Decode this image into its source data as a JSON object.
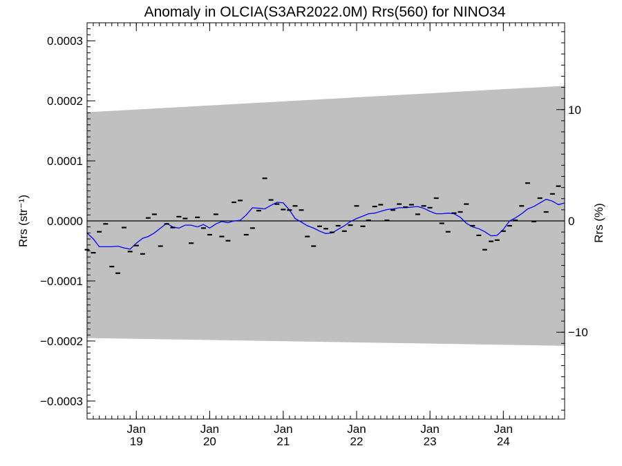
{
  "chart_data": {
    "type": "scatter",
    "title": "Anomaly in OLCIA(S3AR2022.0M) Rrs(560) for NINO34",
    "ylabel_left": "Rrs (str⁻¹)",
    "ylabel_right": "Rrs (%)",
    "ylim": [
      -0.00033,
      0.00033
    ],
    "ylim_right": [
      -17.8,
      17.8
    ],
    "xlim": [
      "2018-05-01",
      "2024-11-01"
    ],
    "y_ticks": [
      {
        "value": 0.0003,
        "label": "0.0003"
      },
      {
        "value": 0.0002,
        "label": "0.0002"
      },
      {
        "value": 0.0001,
        "label": "0.0001"
      },
      {
        "value": 0.0,
        "label": "0.0000"
      },
      {
        "value": -0.0001,
        "label": "−0.0001"
      },
      {
        "value": -0.0002,
        "label": "−0.0002"
      },
      {
        "value": -0.0003,
        "label": "−0.0003"
      }
    ],
    "y_ticks_right": [
      {
        "value": 10,
        "label": "10"
      },
      {
        "value": 0,
        "label": "0"
      },
      {
        "value": -10,
        "label": "−10"
      }
    ],
    "x_ticks": [
      {
        "date": "2019-01-01",
        "month": "Jan",
        "year": "19"
      },
      {
        "date": "2020-01-01",
        "month": "Jan",
        "year": "20"
      },
      {
        "date": "2021-01-01",
        "month": "Jan",
        "year": "21"
      },
      {
        "date": "2022-01-01",
        "month": "Jan",
        "year": "22"
      },
      {
        "date": "2023-01-01",
        "month": "Jan",
        "year": "23"
      },
      {
        "date": "2024-01-01",
        "month": "Jan",
        "year": "24"
      }
    ],
    "zero_line": 0,
    "uncertainty_band": {
      "color": "#c0c0c0",
      "upper": [
        [
          "2018-05-01",
          0.000181
        ],
        [
          "2024-11-01",
          0.000225
        ]
      ],
      "lower": [
        [
          "2018-05-01",
          -0.000195
        ],
        [
          "2024-11-01",
          -0.000208
        ]
      ]
    },
    "series": [
      {
        "kind": "monthly",
        "marker": "dash",
        "color": "#000000",
        "points": [
          [
            "2018-05-01",
            -4.8e-05
          ],
          [
            "2018-06-01",
            -5.3e-05
          ],
          [
            "2018-07-01",
            -1.8e-05
          ],
          [
            "2018-08-01",
            -5e-06
          ],
          [
            "2018-09-01",
            -7.6e-05
          ],
          [
            "2018-10-01",
            -8.7e-05
          ],
          [
            "2018-11-01",
            -1.1e-05
          ],
          [
            "2018-12-01",
            -5.1e-05
          ],
          [
            "2019-01-01",
            -4.1e-05
          ],
          [
            "2019-02-01",
            -5.5e-05
          ],
          [
            "2019-03-01",
            5e-06
          ],
          [
            "2019-04-01",
            1.1e-05
          ],
          [
            "2019-05-01",
            -4.2e-05
          ],
          [
            "2019-06-01",
            -5e-06
          ],
          [
            "2019-07-01",
            -1.1e-05
          ],
          [
            "2019-08-01",
            7e-06
          ],
          [
            "2019-09-01",
            4e-06
          ],
          [
            "2019-10-01",
            -3.7e-05
          ],
          [
            "2019-11-01",
            6e-06
          ],
          [
            "2019-12-01",
            -1.2e-05
          ],
          [
            "2020-01-01",
            -2.3e-05
          ],
          [
            "2020-02-01",
            1.1e-05
          ],
          [
            "2020-03-01",
            -2.6e-05
          ],
          [
            "2020-04-01",
            -3.3e-05
          ],
          [
            "2020-05-01",
            3.1e-05
          ],
          [
            "2020-06-01",
            3.4e-05
          ],
          [
            "2020-07-01",
            -2.3e-05
          ],
          [
            "2020-08-01",
            -1.2e-05
          ],
          [
            "2020-09-01",
            1.7e-05
          ],
          [
            "2020-10-01",
            7.1e-05
          ],
          [
            "2020-11-01",
            3.5e-05
          ],
          [
            "2020-12-01",
            2.8e-05
          ],
          [
            "2021-01-01",
            1.9e-05
          ],
          [
            "2021-02-01",
            1.8e-05
          ],
          [
            "2021-03-01",
            2.5e-05
          ],
          [
            "2021-04-01",
            1.8e-05
          ],
          [
            "2021-05-01",
            -2.6e-05
          ],
          [
            "2021-06-01",
            -4.2e-05
          ],
          [
            "2021-07-01",
            -9e-06
          ],
          [
            "2021-08-01",
            -1.3e-05
          ],
          [
            "2021-09-01",
            -1.9e-05
          ],
          [
            "2021-10-01",
            -8e-06
          ],
          [
            "2021-11-01",
            -1.7e-05
          ],
          [
            "2021-12-01",
            -7e-06
          ],
          [
            "2022-01-01",
            2.5e-05
          ],
          [
            "2022-02-01",
            -9e-06
          ],
          [
            "2022-03-01",
            1e-06
          ],
          [
            "2022-04-01",
            2.4e-05
          ],
          [
            "2022-05-01",
            2.7e-05
          ],
          [
            "2022-06-01",
            1e-06
          ],
          [
            "2022-07-01",
            1.8e-05
          ],
          [
            "2022-08-01",
            2.8e-05
          ],
          [
            "2022-09-01",
            2.3e-05
          ],
          [
            "2022-10-01",
            2.7e-05
          ],
          [
            "2022-11-01",
            1.1e-05
          ],
          [
            "2022-12-01",
            2.5e-05
          ],
          [
            "2023-01-01",
            2.2e-05
          ],
          [
            "2023-02-01",
            3.8e-05
          ],
          [
            "2023-03-01",
            -4e-06
          ],
          [
            "2023-04-01",
            -1.8e-05
          ],
          [
            "2023-05-01",
            1.3e-05
          ],
          [
            "2023-06-01",
            1.5e-05
          ],
          [
            "2023-07-01",
            2.8e-05
          ],
          [
            "2023-08-01",
            -8e-06
          ],
          [
            "2023-09-01",
            -2.4e-05
          ],
          [
            "2023-10-01",
            -4.8e-05
          ],
          [
            "2023-11-01",
            -3.4e-05
          ],
          [
            "2023-12-01",
            -3.2e-05
          ],
          [
            "2024-01-01",
            -1.7e-05
          ],
          [
            "2024-02-01",
            -8e-06
          ],
          [
            "2024-03-01",
            1e-06
          ],
          [
            "2024-04-01",
            2.5e-05
          ],
          [
            "2024-05-01",
            6.3e-05
          ],
          [
            "2024-06-01",
            -1e-06
          ],
          [
            "2024-07-01",
            3.8e-05
          ],
          [
            "2024-08-01",
            1.5e-05
          ],
          [
            "2024-09-01",
            4.5e-05
          ],
          [
            "2024-10-01",
            5.8e-05
          ]
        ]
      },
      {
        "kind": "running-mean",
        "marker": "line",
        "color": "#0000ff",
        "points": [
          [
            "2018-05-01",
            -2e-05
          ],
          [
            "2018-06-01",
            -3e-05
          ],
          [
            "2018-07-01",
            -4.3e-05
          ],
          [
            "2018-08-01",
            -4.3e-05
          ],
          [
            "2018-09-01",
            -4.3e-05
          ],
          [
            "2018-10-01",
            -4.2e-05
          ],
          [
            "2018-11-01",
            -4.5e-05
          ],
          [
            "2018-12-01",
            -4.7e-05
          ],
          [
            "2019-01-01",
            -3.7e-05
          ],
          [
            "2019-02-01",
            -2.9e-05
          ],
          [
            "2019-03-01",
            -2.6e-05
          ],
          [
            "2019-04-01",
            -2e-05
          ],
          [
            "2019-05-01",
            -1.2e-05
          ],
          [
            "2019-06-01",
            -4e-06
          ],
          [
            "2019-07-01",
            -1e-05
          ],
          [
            "2019-08-01",
            -1.2e-05
          ],
          [
            "2019-09-01",
            -7e-06
          ],
          [
            "2019-10-01",
            -7e-06
          ],
          [
            "2019-11-01",
            -1e-05
          ],
          [
            "2019-12-01",
            -6e-06
          ],
          [
            "2020-01-01",
            -1.2e-05
          ],
          [
            "2020-02-01",
            -5e-06
          ],
          [
            "2020-03-01",
            -1e-06
          ],
          [
            "2020-04-01",
            -3e-06
          ],
          [
            "2020-05-01",
            0.0
          ],
          [
            "2020-06-01",
            1e-06
          ],
          [
            "2020-07-01",
            1e-05
          ],
          [
            "2020-08-01",
            2.2e-05
          ],
          [
            "2020-09-01",
            2.1e-05
          ],
          [
            "2020-10-01",
            2e-05
          ],
          [
            "2020-11-01",
            2.6e-05
          ],
          [
            "2020-12-01",
            3.1e-05
          ],
          [
            "2021-01-01",
            3e-05
          ],
          [
            "2021-02-01",
            1.8e-05
          ],
          [
            "2021-03-01",
            4e-06
          ],
          [
            "2021-04-01",
            -2e-06
          ],
          [
            "2021-05-01",
            -8e-06
          ],
          [
            "2021-06-01",
            -1.2e-05
          ],
          [
            "2021-07-01",
            -1.7e-05
          ],
          [
            "2021-08-01",
            -2.1e-05
          ],
          [
            "2021-09-01",
            -2e-05
          ],
          [
            "2021-10-01",
            -1.4e-05
          ],
          [
            "2021-11-01",
            -8e-06
          ],
          [
            "2021-12-01",
            -1e-06
          ],
          [
            "2022-01-01",
            4e-06
          ],
          [
            "2022-02-01",
            8e-06
          ],
          [
            "2022-03-01",
            1.2e-05
          ],
          [
            "2022-04-01",
            1.3e-05
          ],
          [
            "2022-05-01",
            1.6e-05
          ],
          [
            "2022-06-01",
            1.9e-05
          ],
          [
            "2022-07-01",
            2e-05
          ],
          [
            "2022-08-01",
            2.2e-05
          ],
          [
            "2022-09-01",
            2.2e-05
          ],
          [
            "2022-10-01",
            2.3e-05
          ],
          [
            "2022-11-01",
            2.4e-05
          ],
          [
            "2022-12-01",
            2.1e-05
          ],
          [
            "2023-01-01",
            1.6e-05
          ],
          [
            "2023-02-01",
            1.2e-05
          ],
          [
            "2023-03-01",
            1.2e-05
          ],
          [
            "2023-04-01",
            1.3e-05
          ],
          [
            "2023-05-01",
            1.2e-05
          ],
          [
            "2023-06-01",
            6e-06
          ],
          [
            "2023-07-01",
            -4e-06
          ],
          [
            "2023-08-01",
            -1e-05
          ],
          [
            "2023-09-01",
            -1.3e-05
          ],
          [
            "2023-10-01",
            -1.8e-05
          ],
          [
            "2023-11-01",
            -2.5e-05
          ],
          [
            "2023-12-01",
            -2.4e-05
          ],
          [
            "2024-01-01",
            -1.4e-05
          ],
          [
            "2024-02-01",
            0.0
          ],
          [
            "2024-03-01",
            5e-06
          ],
          [
            "2024-04-01",
            1.2e-05
          ],
          [
            "2024-05-01",
            2e-05
          ],
          [
            "2024-06-01",
            2.4e-05
          ],
          [
            "2024-07-01",
            3e-05
          ],
          [
            "2024-08-01",
            3.6e-05
          ],
          [
            "2024-09-01",
            3.3e-05
          ],
          [
            "2024-10-01",
            2.7e-05
          ],
          [
            "2024-11-01",
            3e-05
          ]
        ]
      }
    ]
  }
}
